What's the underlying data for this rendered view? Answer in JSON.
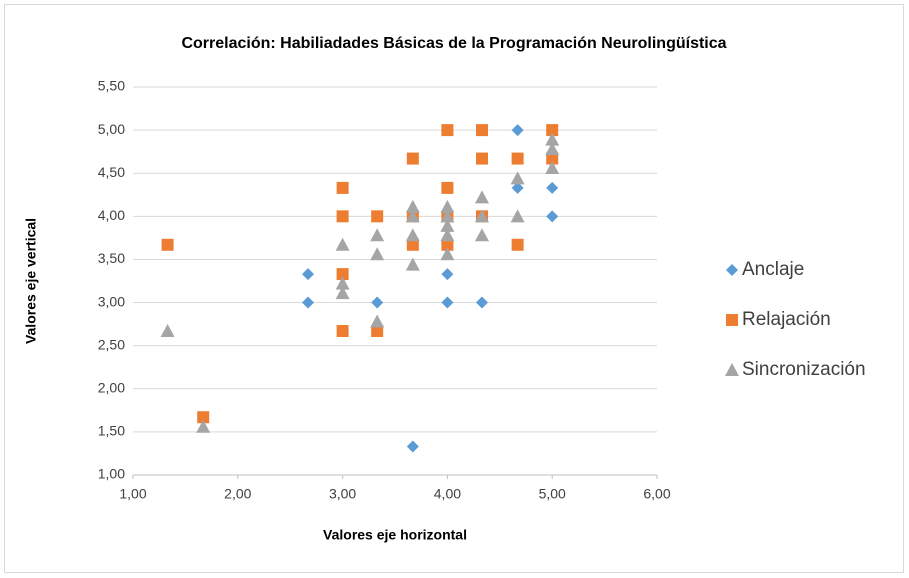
{
  "chart_data": {
    "type": "scatter",
    "title": "Correlación: Habiliadades Básicas de la Programación Neurolingüística",
    "xlabel": "Valores eje horizontal",
    "ylabel": "Valores eje vertical",
    "xlim": [
      1,
      6
    ],
    "ylim": [
      1,
      5.5
    ],
    "xticks": [
      {
        "value": 1,
        "label": "1,00"
      },
      {
        "value": 2,
        "label": "2,00"
      },
      {
        "value": 3,
        "label": "3,00"
      },
      {
        "value": 4,
        "label": "4,00"
      },
      {
        "value": 5,
        "label": "5,00"
      },
      {
        "value": 6,
        "label": "6,00"
      }
    ],
    "yticks": [
      {
        "value": 1,
        "label": "1,00"
      },
      {
        "value": 1.5,
        "label": "1,50"
      },
      {
        "value": 2,
        "label": "2,00"
      },
      {
        "value": 2.5,
        "label": "2,50"
      },
      {
        "value": 3,
        "label": "3,00"
      },
      {
        "value": 3.5,
        "label": "3,50"
      },
      {
        "value": 4,
        "label": "4,00"
      },
      {
        "value": 4.5,
        "label": "4,50"
      },
      {
        "value": 5,
        "label": "5,00"
      },
      {
        "value": 5.5,
        "label": "5,50"
      }
    ],
    "grid": true,
    "legend": "right",
    "series": [
      {
        "name": "Anclaje",
        "color": "#5b9bd5",
        "marker": "diamond",
        "x": [
          2.67,
          2.67,
          3.33,
          3.67,
          4.0,
          4.0,
          4.33,
          4.67,
          4.67,
          5.0,
          5.0
        ],
        "values": [
          3.33,
          3.0,
          3.0,
          1.33,
          3.33,
          3.0,
          3.0,
          5.0,
          4.33,
          4.33,
          4.0
        ]
      },
      {
        "name": "Relajación",
        "color": "#ed7d31",
        "marker": "square",
        "x": [
          1.33,
          1.67,
          3.0,
          3.0,
          3.0,
          3.0,
          3.33,
          3.33,
          3.67,
          3.67,
          3.67,
          4.0,
          4.0,
          4.0,
          4.0,
          4.33,
          4.33,
          4.33,
          4.67,
          4.67,
          5.0,
          5.0
        ],
        "values": [
          3.67,
          1.67,
          4.33,
          4.0,
          3.33,
          2.67,
          4.0,
          2.67,
          4.67,
          4.0,
          3.67,
          5.0,
          4.33,
          4.0,
          3.67,
          5.0,
          4.67,
          4.0,
          4.67,
          3.67,
          5.0,
          4.67
        ]
      },
      {
        "name": "Sincronización",
        "color": "#a5a5a5",
        "marker": "triangle",
        "x": [
          1.33,
          1.67,
          3.0,
          3.0,
          3.0,
          3.33,
          3.33,
          3.33,
          3.67,
          3.67,
          3.67,
          3.67,
          4.0,
          4.0,
          4.0,
          4.0,
          4.0,
          4.33,
          4.33,
          4.33,
          4.67,
          4.67,
          5.0,
          5.0,
          5.0
        ],
        "values": [
          2.67,
          1.56,
          3.67,
          3.22,
          3.11,
          3.78,
          3.56,
          2.78,
          4.11,
          4.0,
          3.78,
          3.44,
          4.11,
          4.0,
          3.89,
          3.78,
          3.56,
          4.22,
          4.0,
          3.78,
          4.44,
          4.0,
          4.89,
          4.78,
          4.56
        ]
      }
    ]
  }
}
